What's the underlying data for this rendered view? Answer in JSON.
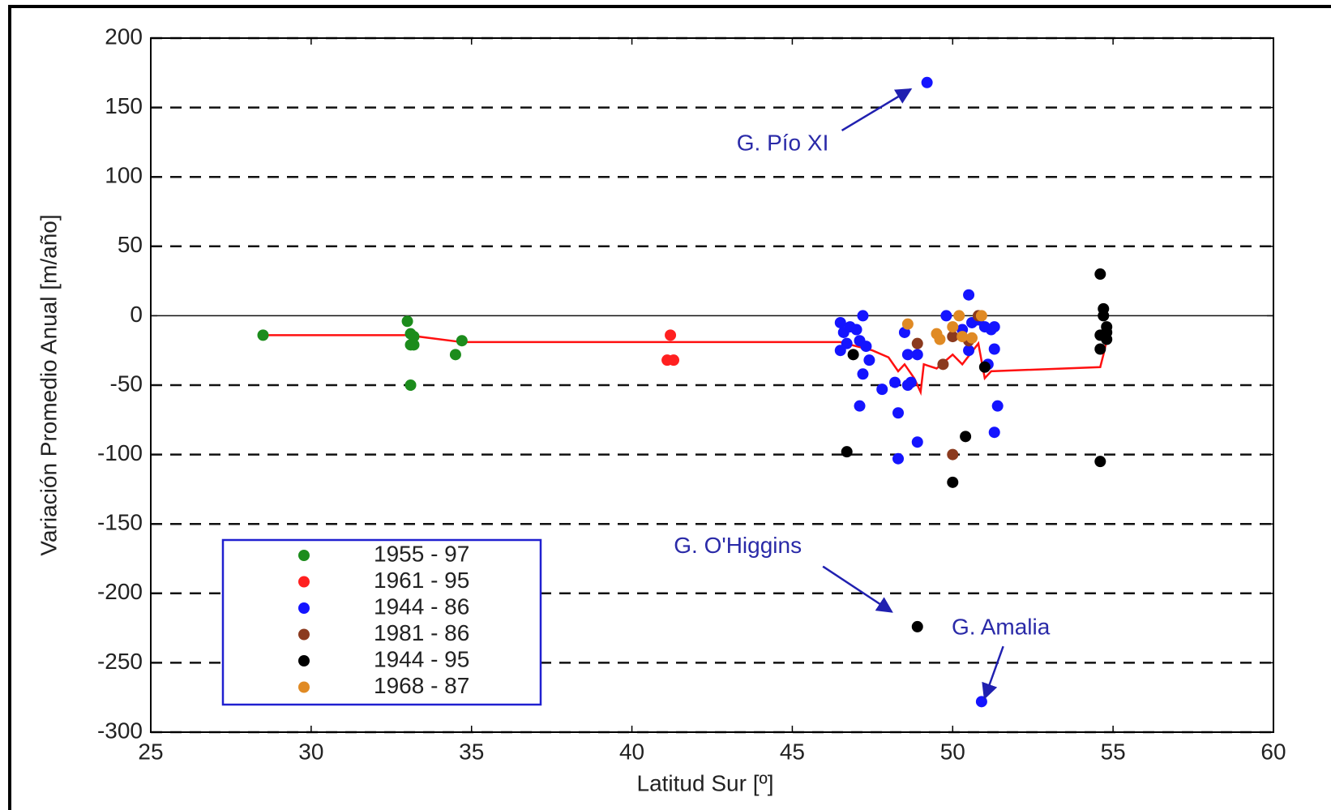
{
  "chart_data": {
    "type": "scatter",
    "xlabel": "Latitud Sur [º]",
    "ylabel": "Variación Promedio Anual [m/año]",
    "xlim": [
      25,
      60
    ],
    "ylim": [
      -300,
      200
    ],
    "xticks": [
      25,
      30,
      35,
      40,
      45,
      50,
      55,
      60
    ],
    "yticks": [
      200,
      150,
      100,
      50,
      0,
      -50,
      -100,
      -150,
      -200,
      -250,
      -300
    ],
    "grid": true,
    "legend": "lower left",
    "series": [
      {
        "name": "1955 - 97",
        "color": "#1c8c1c",
        "x": [
          28.5,
          33.0,
          33.1,
          33.2,
          33.1,
          33.2,
          33.1,
          34.5,
          34.7
        ],
        "values": [
          -14,
          -4,
          -13,
          -15,
          -21,
          -21,
          -50,
          -28,
          -18
        ]
      },
      {
        "name": "1961 - 95",
        "color": "#ff2020",
        "x": [
          41.2,
          41.1,
          41.3
        ],
        "values": [
          -14,
          -32,
          -32
        ]
      },
      {
        "name": "1944 - 86",
        "color": "#1414ff",
        "x": [
          46.5,
          46.6,
          46.7,
          46.5,
          46.8,
          47.0,
          47.2,
          47.1,
          47.3,
          47.4,
          47.2,
          47.1,
          47.8,
          48.2,
          48.3,
          48.5,
          48.6,
          48.7,
          48.9,
          48.6,
          48.3,
          48.9,
          49.2,
          49.8,
          50.3,
          50.5,
          50.5,
          50.6,
          50.8,
          51.0,
          51.2,
          51.3,
          51.1,
          51.3,
          51.3,
          51.4,
          50.9
        ],
        "values": [
          -5,
          -12,
          -20,
          -25,
          -8,
          -10,
          0,
          -18,
          -22,
          -32,
          -42,
          -65,
          -53,
          -48,
          -70,
          -12,
          -28,
          -48,
          -28,
          -50,
          -103,
          -91,
          168,
          0,
          -10,
          -25,
          15,
          -5,
          -3,
          -8,
          -10,
          -8,
          -35,
          -24,
          -84,
          -65,
          -278
        ]
      },
      {
        "name": "1981 - 86",
        "color": "#8b3a1e",
        "x": [
          48.9,
          49.7,
          50.0,
          50.5,
          50.8,
          50.0
        ],
        "values": [
          -20,
          -35,
          -100,
          -18,
          0,
          -15
        ]
      },
      {
        "name": "1944 - 95",
        "color": "#000000",
        "x": [
          46.7,
          46.9,
          50.0,
          50.4,
          48.9,
          54.6,
          54.7,
          54.7,
          54.8,
          54.8,
          54.6,
          54.8,
          54.6,
          54.6,
          51.0
        ],
        "values": [
          -98,
          -28,
          -120,
          -87,
          -224,
          30,
          5,
          0,
          -8,
          -12,
          -14,
          -17,
          -24,
          -105,
          -37
        ]
      },
      {
        "name": "1968 - 87",
        "color": "#e08a24",
        "x": [
          48.6,
          49.5,
          49.6,
          50.0,
          50.2,
          50.3,
          50.6,
          50.9
        ],
        "values": [
          -6,
          -13,
          -17,
          -8,
          0,
          -15,
          -16,
          0
        ]
      }
    ],
    "trend": {
      "color": "#ff1010",
      "x": [
        28.5,
        33.0,
        34.7,
        41.2,
        46.5,
        47.5,
        48.0,
        48.3,
        48.5,
        48.8,
        49.0,
        49.1,
        49.5,
        50.0,
        50.3,
        50.8,
        51.0,
        51.2,
        54.6,
        54.7,
        54.8
      ],
      "values": [
        -14,
        -14,
        -19,
        -19,
        -19,
        -25,
        -30,
        -40,
        -35,
        -45,
        -55,
        -35,
        -38,
        -28,
        -35,
        -20,
        -45,
        -40,
        -37,
        -28,
        -18
      ]
    },
    "annotations": [
      {
        "text": "G. Pío XI",
        "x": 44.7,
        "y": 123.5
      },
      {
        "text": "G. O'Higgins",
        "x": 43.3,
        "y": -166.6
      },
      {
        "text": "G. Amalia",
        "x": 51.5,
        "y": -225.3
      }
    ]
  }
}
